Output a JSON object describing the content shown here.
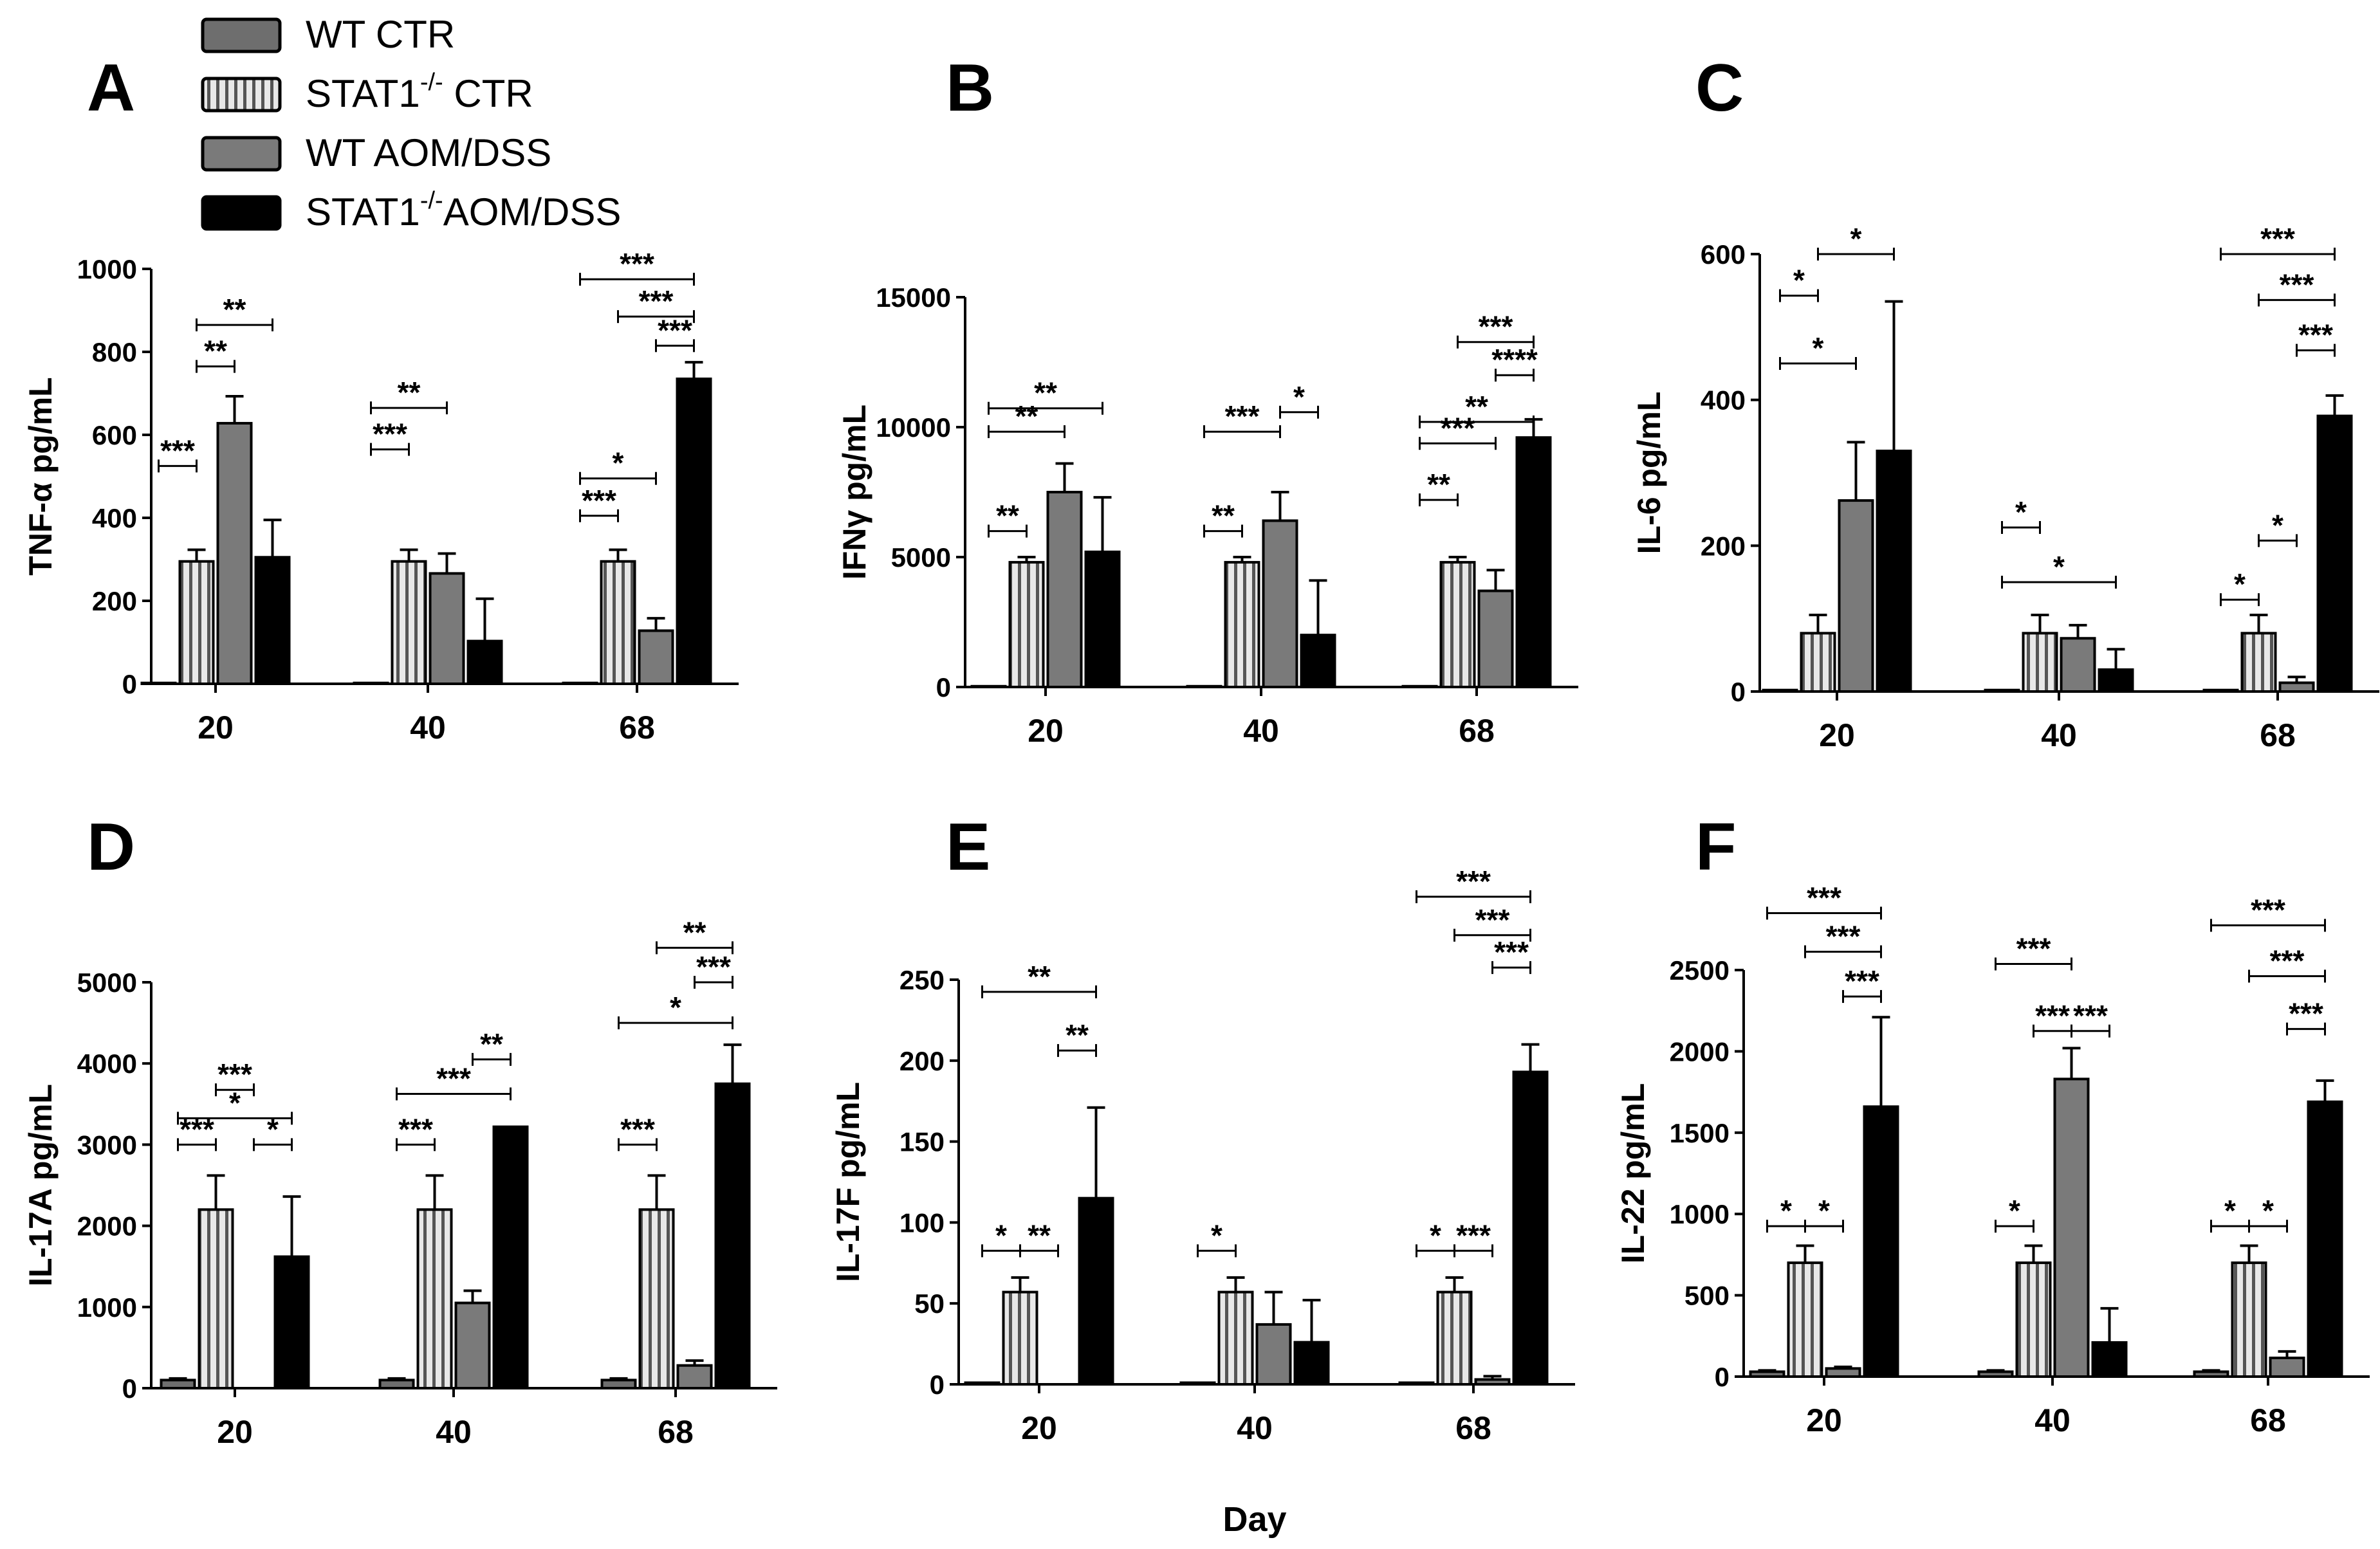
{
  "legend": {
    "items": [
      {
        "text": "WT CTR",
        "pattern": "gray"
      },
      {
        "text": "STAT1",
        "sup": "-/-",
        "tail": " CTR",
        "pattern": "striped"
      },
      {
        "text": "WT AOM/DSS",
        "pattern": "lightgray"
      },
      {
        "text": "STAT1",
        "sup": "-/-",
        "tail": "AOM/DSS",
        "pattern": "black"
      }
    ]
  },
  "shared_xlabel": "Day",
  "colors": {
    "wt_ctr": "#6e6e6e",
    "stat1_ctr": "#d9d9d9",
    "wt_aomdss": "#7a7a7a",
    "stat1_aomdss": "#000000",
    "axis": "#000000"
  },
  "chart_data": [
    {
      "panel": "A",
      "type": "bar",
      "ylabel": "TNF-α pg/mL",
      "categories": [
        "20",
        "40",
        "68"
      ],
      "xlabel": "Day",
      "yticks": [
        "0",
        "200",
        "400",
        "600",
        "800",
        "1000"
      ],
      "ylim": [
        0,
        1000
      ],
      "series": [
        {
          "name": "WT CTR",
          "values": [
            2,
            2,
            2
          ],
          "errors": [
            0,
            0,
            0
          ]
        },
        {
          "name": "STAT1-/- CTR",
          "values": [
            295,
            295,
            295
          ],
          "errors": [
            28,
            28,
            28
          ]
        },
        {
          "name": "WT AOM/DSS",
          "values": [
            628,
            266,
            128
          ],
          "errors": [
            65,
            48,
            30
          ]
        },
        {
          "name": "STAT1-/-AOM/DSS",
          "values": [
            305,
            103,
            735
          ],
          "errors": [
            90,
            102,
            40
          ]
        }
      ],
      "significance": [
        {
          "group": 0,
          "from": 0,
          "to": 1,
          "level": 0.525,
          "label": "***"
        },
        {
          "group": 0,
          "from": 1,
          "to": 2,
          "level": 0.765,
          "label": "**"
        },
        {
          "group": 0,
          "from": 1,
          "to": 3,
          "level": 0.865,
          "label": "**"
        },
        {
          "group": 1,
          "from": 0,
          "to": 1,
          "level": 0.565,
          "label": "***"
        },
        {
          "group": 1,
          "from": 0,
          "to": 2,
          "level": 0.665,
          "label": "**"
        },
        {
          "group": 2,
          "from": 0,
          "to": 1,
          "level": 0.405,
          "label": "***"
        },
        {
          "group": 2,
          "from": 0,
          "to": 2,
          "level": 0.495,
          "label": "*"
        },
        {
          "group": 2,
          "from": 2,
          "to": 3,
          "level": 0.815,
          "label": "***"
        },
        {
          "group": 2,
          "from": 1,
          "to": 3,
          "level": 0.885,
          "label": "***"
        },
        {
          "group": 2,
          "from": 0,
          "to": 3,
          "level": 0.975,
          "label": "***"
        }
      ]
    },
    {
      "panel": "B",
      "type": "bar",
      "ylabel": "IFNγ pg/mL",
      "categories": [
        "20",
        "40",
        "68"
      ],
      "xlabel": "Day",
      "yticks": [
        "0",
        "5000",
        "10000",
        "15000"
      ],
      "ylim": [
        0,
        15000
      ],
      "series": [
        {
          "name": "WT CTR",
          "values": [
            30,
            30,
            30
          ],
          "errors": [
            0,
            0,
            0
          ]
        },
        {
          "name": "STAT1-/- CTR",
          "values": [
            4800,
            4800,
            4800
          ],
          "errors": [
            200,
            200,
            200
          ]
        },
        {
          "name": "WT AOM/DSS",
          "values": [
            7500,
            6400,
            3700
          ],
          "errors": [
            1100,
            1100,
            800
          ]
        },
        {
          "name": "STAT1-/-AOM/DSS",
          "values": [
            5200,
            2000,
            9600
          ],
          "errors": [
            2100,
            2100,
            700
          ]
        }
      ],
      "significance": [
        {
          "group": 0,
          "from": 0,
          "to": 1,
          "level": 0.4,
          "label": "**"
        },
        {
          "group": 0,
          "from": 0,
          "to": 2,
          "level": 0.655,
          "label": "**"
        },
        {
          "group": 0,
          "from": 0,
          "to": 3,
          "level": 0.715,
          "label": "**"
        },
        {
          "group": 1,
          "from": 0,
          "to": 1,
          "level": 0.4,
          "label": "**"
        },
        {
          "group": 1,
          "from": 0,
          "to": 2,
          "level": 0.655,
          "label": "***"
        },
        {
          "group": 1,
          "from": 2,
          "to": 3,
          "level": 0.705,
          "label": "*"
        },
        {
          "group": 2,
          "from": 0,
          "to": 1,
          "level": 0.48,
          "label": "**"
        },
        {
          "group": 2,
          "from": 0,
          "to": 2,
          "level": 0.625,
          "label": "***"
        },
        {
          "group": 2,
          "from": 0,
          "to": 3,
          "level": 0.68,
          "label": "**"
        },
        {
          "group": 2,
          "from": 2,
          "to": 3,
          "level": 0.8,
          "label": "****"
        },
        {
          "group": 2,
          "from": 1,
          "to": 3,
          "level": 0.885,
          "label": "***"
        }
      ]
    },
    {
      "panel": "C",
      "type": "bar",
      "ylabel": "IL-6 pg/mL",
      "categories": [
        "20",
        "40",
        "68"
      ],
      "xlabel": "Day",
      "yticks": [
        "0",
        "200",
        "400",
        "600"
      ],
      "ylim": [
        0,
        600
      ],
      "series": [
        {
          "name": "WT CTR",
          "values": [
            2,
            2,
            2
          ],
          "errors": [
            0,
            0,
            0
          ]
        },
        {
          "name": "STAT1-/- CTR",
          "values": [
            80,
            80,
            80
          ],
          "errors": [
            25,
            25,
            25
          ]
        },
        {
          "name": "WT AOM/DSS",
          "values": [
            262,
            73,
            12
          ],
          "errors": [
            80,
            18,
            8
          ]
        },
        {
          "name": "STAT1-/-AOM/DSS",
          "values": [
            330,
            30,
            378
          ],
          "errors": [
            205,
            28,
            28
          ]
        }
      ],
      "significance": [
        {
          "group": 0,
          "from": 0,
          "to": 1,
          "level": 0.905,
          "label": "*"
        },
        {
          "group": 0,
          "from": 0,
          "to": 2,
          "level": 0.75,
          "label": "*"
        },
        {
          "group": 0,
          "from": 1,
          "to": 3,
          "level": 1.0,
          "label": "*"
        },
        {
          "group": 1,
          "from": 0,
          "to": 1,
          "level": 0.375,
          "label": "*"
        },
        {
          "group": 1,
          "from": 0,
          "to": 3,
          "level": 0.25,
          "label": "*"
        },
        {
          "group": 2,
          "from": 0,
          "to": 1,
          "level": 0.21,
          "label": "*"
        },
        {
          "group": 2,
          "from": 1,
          "to": 2,
          "level": 0.345,
          "label": "*"
        },
        {
          "group": 2,
          "from": 2,
          "to": 3,
          "level": 0.78,
          "label": "***"
        },
        {
          "group": 2,
          "from": 1,
          "to": 3,
          "level": 0.895,
          "label": "***"
        },
        {
          "group": 2,
          "from": 0,
          "to": 3,
          "level": 1.0,
          "label": "***"
        }
      ]
    },
    {
      "panel": "D",
      "type": "bar",
      "ylabel": "IL-17A pg/mL",
      "categories": [
        "20",
        "40",
        "68"
      ],
      "xlabel": "Day",
      "yticks": [
        "0",
        "1000",
        "2000",
        "3000",
        "4000",
        "5000"
      ],
      "ylim": [
        0,
        5000
      ],
      "series": [
        {
          "name": "WT CTR",
          "values": [
            100,
            100,
            100
          ],
          "errors": [
            20,
            20,
            20
          ]
        },
        {
          "name": "STAT1-/- CTR",
          "values": [
            2200,
            2200,
            2200
          ],
          "errors": [
            420,
            420,
            420
          ]
        },
        {
          "name": "WT AOM/DSS",
          "values": [
            0,
            1050,
            280
          ],
          "errors": [
            0,
            150,
            60
          ]
        },
        {
          "name": "STAT1-/-AOM/DSS",
          "values": [
            1620,
            3220,
            3750
          ],
          "errors": [
            740,
            0,
            480
          ]
        }
      ],
      "significance": [
        {
          "group": 0,
          "from": 0,
          "to": 1,
          "level": 0.6,
          "label": "***"
        },
        {
          "group": 0,
          "from": 2,
          "to": 3,
          "level": 0.6,
          "label": "*"
        },
        {
          "group": 0,
          "from": 0,
          "to": 3,
          "level": 0.665,
          "label": "*"
        },
        {
          "group": 0,
          "from": 1,
          "to": 2,
          "level": 0.735,
          "label": "***"
        },
        {
          "group": 1,
          "from": 0,
          "to": 1,
          "level": 0.6,
          "label": "***"
        },
        {
          "group": 1,
          "from": 0,
          "to": 3,
          "level": 0.725,
          "label": "***"
        },
        {
          "group": 1,
          "from": 2,
          "to": 3,
          "level": 0.81,
          "label": "**"
        },
        {
          "group": 2,
          "from": 0,
          "to": 1,
          "level": 0.6,
          "label": "***"
        },
        {
          "group": 2,
          "from": 0,
          "to": 3,
          "level": 0.9,
          "label": "*"
        },
        {
          "group": 2,
          "from": 2,
          "to": 3,
          "level": 1.0,
          "label": "***"
        },
        {
          "group": 2,
          "from": 1,
          "to": 3,
          "level": 1.085,
          "label": "**"
        }
      ]
    },
    {
      "panel": "E",
      "type": "bar",
      "ylabel": "IL-17F pg/mL",
      "categories": [
        "20",
        "40",
        "68"
      ],
      "xlabel": "Day",
      "yticks": [
        "0",
        "50",
        "100",
        "150",
        "200",
        "250"
      ],
      "ylim": [
        0,
        250
      ],
      "series": [
        {
          "name": "WT CTR",
          "values": [
            1,
            1,
            1
          ],
          "errors": [
            0,
            0,
            0
          ]
        },
        {
          "name": "STAT1-/- CTR",
          "values": [
            57,
            57,
            57
          ],
          "errors": [
            9,
            9,
            9
          ]
        },
        {
          "name": "WT AOM/DSS",
          "values": [
            0,
            37,
            3
          ],
          "errors": [
            0,
            20,
            2
          ]
        },
        {
          "name": "STAT1-/-AOM/DSS",
          "values": [
            115,
            26,
            193
          ],
          "errors": [
            56,
            26,
            17
          ]
        }
      ],
      "significance": [
        {
          "group": 0,
          "from": 0,
          "to": 1,
          "level": 0.33,
          "label": "*"
        },
        {
          "group": 0,
          "from": 1,
          "to": 2,
          "level": 0.33,
          "label": "**"
        },
        {
          "group": 0,
          "from": 2,
          "to": 3,
          "level": 0.825,
          "label": "**"
        },
        {
          "group": 0,
          "from": 0,
          "to": 3,
          "level": 0.97,
          "label": "**"
        },
        {
          "group": 1,
          "from": 0,
          "to": 1,
          "level": 0.33,
          "label": "*"
        },
        {
          "group": 2,
          "from": 0,
          "to": 1,
          "level": 0.33,
          "label": "*"
        },
        {
          "group": 2,
          "from": 1,
          "to": 2,
          "level": 0.33,
          "label": "***"
        },
        {
          "group": 2,
          "from": 2,
          "to": 3,
          "level": 1.03,
          "label": "***"
        },
        {
          "group": 2,
          "from": 1,
          "to": 3,
          "level": 1.11,
          "label": "***"
        },
        {
          "group": 2,
          "from": 0,
          "to": 3,
          "level": 1.205,
          "label": "***"
        }
      ]
    },
    {
      "panel": "F",
      "type": "bar",
      "ylabel": "IL-22 pg/mL",
      "categories": [
        "20",
        "40",
        "68"
      ],
      "xlabel": "Day",
      "yticks": [
        "0",
        "500",
        "1000",
        "1500",
        "2000",
        "2500"
      ],
      "ylim": [
        0,
        2500
      ],
      "series": [
        {
          "name": "WT CTR",
          "values": [
            30,
            30,
            30
          ],
          "errors": [
            8,
            8,
            8
          ]
        },
        {
          "name": "STAT1-/- CTR",
          "values": [
            700,
            700,
            700
          ],
          "errors": [
            105,
            105,
            105
          ]
        },
        {
          "name": "WT AOM/DSS",
          "values": [
            50,
            1830,
            115
          ],
          "errors": [
            10,
            190,
            40
          ]
        },
        {
          "name": "STAT1-/-AOM/DSS",
          "values": [
            1660,
            210,
            1690
          ],
          "errors": [
            550,
            210,
            130
          ]
        }
      ],
      "significance": [
        {
          "group": 0,
          "from": 0,
          "to": 1,
          "level": 0.37,
          "label": "*"
        },
        {
          "group": 0,
          "from": 1,
          "to": 2,
          "level": 0.37,
          "label": "*"
        },
        {
          "group": 0,
          "from": 2,
          "to": 3,
          "level": 0.935,
          "label": "***"
        },
        {
          "group": 0,
          "from": 1,
          "to": 3,
          "level": 1.045,
          "label": "***"
        },
        {
          "group": 0,
          "from": 0,
          "to": 3,
          "level": 1.14,
          "label": "***"
        },
        {
          "group": 1,
          "from": 0,
          "to": 1,
          "level": 0.37,
          "label": "*"
        },
        {
          "group": 1,
          "from": 1,
          "to": 2,
          "level": 0.85,
          "label": "***"
        },
        {
          "group": 1,
          "from": 2,
          "to": 3,
          "level": 0.85,
          "label": "***"
        },
        {
          "group": 1,
          "from": 0,
          "to": 2,
          "level": 1.015,
          "label": "***"
        },
        {
          "group": 2,
          "from": 0,
          "to": 1,
          "level": 0.37,
          "label": "*"
        },
        {
          "group": 2,
          "from": 1,
          "to": 2,
          "level": 0.37,
          "label": "*"
        },
        {
          "group": 2,
          "from": 2,
          "to": 3,
          "level": 0.855,
          "label": "***"
        },
        {
          "group": 2,
          "from": 1,
          "to": 3,
          "level": 0.985,
          "label": "***"
        },
        {
          "group": 2,
          "from": 0,
          "to": 3,
          "level": 1.11,
          "label": "***"
        }
      ]
    }
  ]
}
